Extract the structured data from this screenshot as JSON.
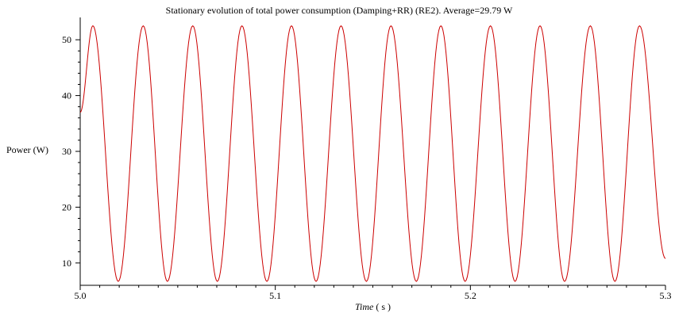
{
  "chart_data": {
    "type": "line",
    "title": "Stationary evolution of total power consumption (Damping+RR) (RE2). Average=29.79 W",
    "xlabel": "Time",
    "xlabel_unit": "( s )",
    "ylabel": "Power (W)",
    "xlim": [
      5.0,
      5.3
    ],
    "ylim": [
      6.0,
      54.0
    ],
    "x_ticks": [
      5.0,
      5.1,
      5.2,
      5.3
    ],
    "x_tick_labels": [
      "5.0",
      "5.1",
      "5.2",
      "5.3"
    ],
    "y_ticks": [
      10,
      20,
      30,
      40,
      50
    ],
    "y_tick_labels": [
      "10",
      "20",
      "30",
      "40",
      "50"
    ],
    "grid": false,
    "color": "#cc0000",
    "series": [
      {
        "x": [
          5.0,
          5.0065,
          5.0195,
          5.0323,
          5.0447,
          5.0577,
          5.0703,
          5.0829,
          5.0957,
          5.1083,
          5.1209,
          5.1337,
          5.1467,
          5.1593,
          5.1723,
          5.1849,
          5.1973,
          5.2103,
          5.2229,
          5.2357,
          5.2483,
          5.2615,
          5.2741,
          5.2867,
          5.3
        ],
        "y": [
          37.0,
          52.5,
          6.7,
          52.5,
          6.7,
          52.5,
          6.7,
          52.5,
          6.7,
          52.5,
          6.7,
          52.5,
          6.7,
          52.5,
          6.7,
          52.5,
          6.7,
          52.5,
          6.7,
          52.5,
          6.7,
          52.5,
          6.7,
          52.5,
          10.8
        ]
      }
    ]
  }
}
